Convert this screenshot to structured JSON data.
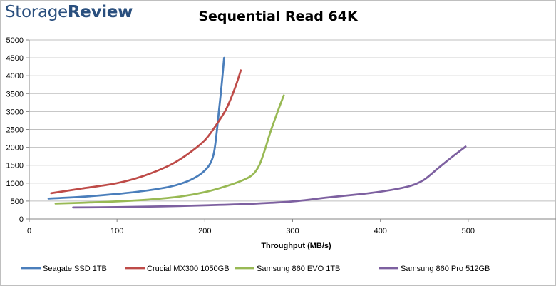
{
  "logo": {
    "part1": "Storage",
    "part2": "Review"
  },
  "chart_data": {
    "type": "line",
    "title": "Sequential Read 64K",
    "xlabel": "Throughput (MB/s)",
    "ylabel": "",
    "xlim": [
      0,
      600
    ],
    "ylim": [
      0,
      5000
    ],
    "xticks": [
      0,
      100,
      200,
      300,
      400,
      500
    ],
    "yticks": [
      0,
      500,
      1000,
      1500,
      2000,
      2500,
      3000,
      3500,
      4000,
      4500,
      5000
    ],
    "grid": "horizontal",
    "legend": "bottom",
    "series": [
      {
        "name": "Seagate SSD 1TB",
        "color": "#4a7ebb",
        "points": [
          [
            22,
            570
          ],
          [
            60,
            620
          ],
          [
            100,
            700
          ],
          [
            130,
            780
          ],
          [
            160,
            900
          ],
          [
            180,
            1050
          ],
          [
            195,
            1250
          ],
          [
            205,
            1500
          ],
          [
            210,
            1800
          ],
          [
            213,
            2300
          ],
          [
            216,
            3000
          ],
          [
            219,
            3700
          ],
          [
            222,
            4500
          ]
        ]
      },
      {
        "name": "Crucial MX300 1050GB",
        "color": "#be4b48",
        "points": [
          [
            25,
            720
          ],
          [
            60,
            850
          ],
          [
            100,
            1000
          ],
          [
            130,
            1200
          ],
          [
            160,
            1500
          ],
          [
            180,
            1800
          ],
          [
            200,
            2200
          ],
          [
            215,
            2700
          ],
          [
            225,
            3100
          ],
          [
            235,
            3700
          ],
          [
            241,
            4150
          ]
        ]
      },
      {
        "name": "Samsung 860 EVO 1TB",
        "color": "#98b954",
        "points": [
          [
            30,
            430
          ],
          [
            80,
            470
          ],
          [
            130,
            530
          ],
          [
            170,
            620
          ],
          [
            200,
            750
          ],
          [
            225,
            920
          ],
          [
            245,
            1100
          ],
          [
            255,
            1250
          ],
          [
            262,
            1500
          ],
          [
            268,
            1900
          ],
          [
            275,
            2450
          ],
          [
            283,
            3000
          ],
          [
            290,
            3450
          ]
        ]
      },
      {
        "name": "Samsung 860 Pro 512GB",
        "color": "#7d60a0",
        "points": [
          [
            50,
            320
          ],
          [
            100,
            330
          ],
          [
            150,
            350
          ],
          [
            200,
            380
          ],
          [
            250,
            420
          ],
          [
            300,
            490
          ],
          [
            340,
            600
          ],
          [
            380,
            700
          ],
          [
            410,
            800
          ],
          [
            435,
            930
          ],
          [
            450,
            1100
          ],
          [
            465,
            1400
          ],
          [
            480,
            1700
          ],
          [
            497,
            2020
          ]
        ]
      }
    ]
  }
}
